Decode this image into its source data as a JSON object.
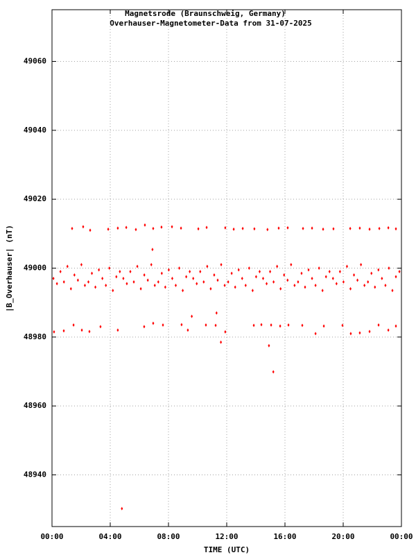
{
  "chart_data": {
    "type": "scatter",
    "title": "Magnetsrode (Braunschweig, Germany)",
    "subtitle": "Overhauser-Magnetometer-Data from 31-07-2025",
    "x_label": "TIME (UTC)",
    "y_label": "|B_Overhauser| (nT)",
    "color": "#ff0000",
    "grid": true,
    "xlim": [
      0,
      24
    ],
    "xticks": [
      {
        "value": 0,
        "label": "00:00"
      },
      {
        "value": 4,
        "label": "04:00"
      },
      {
        "value": 8,
        "label": "08:00"
      },
      {
        "value": 12,
        "label": "12:00"
      },
      {
        "value": 16,
        "label": "16:00"
      },
      {
        "value": 20,
        "label": "20:00"
      },
      {
        "value": 24,
        "label": "00:00"
      }
    ],
    "ylim": [
      48925,
      49075
    ],
    "yticks": [
      48940,
      48960,
      48980,
      49000,
      49020,
      49040,
      49060
    ],
    "x": [
      0.1,
      0.34,
      0.58,
      0.82,
      1.06,
      1.3,
      1.54,
      1.78,
      2.02,
      2.26,
      2.5,
      2.74,
      2.98,
      3.22,
      3.46,
      3.7,
      3.94,
      4.18,
      4.42,
      4.66,
      4.9,
      5.14,
      5.38,
      5.62,
      5.86,
      6.1,
      6.34,
      6.58,
      6.82,
      7.06,
      7.3,
      7.54,
      7.78,
      8.02,
      8.26,
      8.5,
      8.74,
      8.98,
      9.22,
      9.46,
      9.7,
      9.94,
      10.18,
      10.42,
      10.66,
      10.9,
      11.14,
      11.38,
      11.62,
      11.86,
      12.1,
      12.34,
      12.58,
      12.82,
      13.06,
      13.3,
      13.54,
      13.78,
      14.02,
      14.26,
      14.5,
      14.74,
      14.98,
      15.22,
      15.46,
      15.7,
      15.94,
      16.18,
      16.42,
      16.66,
      16.9,
      17.14,
      17.38,
      17.62,
      17.86,
      18.1,
      18.34,
      18.58,
      18.82,
      19.06,
      19.3,
      19.54,
      19.78,
      20.02,
      20.26,
      20.5,
      20.74,
      20.98,
      21.22,
      21.46,
      21.7,
      21.94,
      22.18,
      22.42,
      22.66,
      22.9,
      23.14,
      23.38,
      23.62,
      23.86,
      1.38,
      2.14,
      2.62,
      3.86,
      4.52,
      5.1,
      5.76,
      6.38,
      6.95,
      7.52,
      8.24,
      8.86,
      10.05,
      10.62,
      11.9,
      12.48,
      13.1,
      13.9,
      14.8,
      15.57,
      16.19,
      17.24,
      17.86,
      18.62,
      19.33,
      20.48,
      21.14,
      21.81,
      22.48,
      23.1,
      23.62,
      0.14,
      0.81,
      1.48,
      2.05,
      2.57,
      3.33,
      4.52,
      6.33,
      6.95,
      7.62,
      8.9,
      9.33,
      10.57,
      11.24,
      11.9,
      13.86,
      14.38,
      15.05,
      15.67,
      16.24,
      17.19,
      18.1,
      18.67,
      19.95,
      20.52,
      21.14,
      21.81,
      22.43,
      23.1,
      23.62,
      4.8,
      15.2,
      14.9,
      11.6,
      6.9,
      11.3,
      9.6
    ],
    "values": [
      48997,
      48995.5,
      48999,
      48996,
      49000.5,
      48994,
      48998,
      48996.5,
      49001,
      48995,
      48996,
      48998.5,
      48994.5,
      48999.5,
      48997,
      48995,
      49000,
      48993.5,
      48997.5,
      48999,
      48997,
      48995.5,
      48999,
      48996,
      49000.5,
      48994,
      48998,
      48996.5,
      49001,
      48995,
      48996,
      48998.5,
      48994.5,
      48999.5,
      48997,
      48995,
      49000,
      48993.5,
      48997.5,
      48999,
      48997,
      48995.5,
      48999,
      48996,
      49000.5,
      48994,
      48998,
      48996.5,
      49001,
      48995,
      48996,
      48998.5,
      48994.5,
      48999.5,
      48997,
      48995,
      49000,
      48993.5,
      48997.5,
      48999,
      48997,
      48995.5,
      48999,
      48996,
      49000.5,
      48994,
      48998,
      48996.5,
      49001,
      48995,
      48996,
      48998.5,
      48994.5,
      48999.5,
      48997,
      48995,
      49000,
      48993.5,
      48997.5,
      48999,
      48997,
      48995.5,
      48999,
      48996,
      49000.5,
      48994,
      48998,
      48996.5,
      49001,
      48995,
      48996,
      48998.5,
      48994.5,
      48999.5,
      48997,
      48995,
      49000,
      48993.5,
      48997.5,
      48999,
      49011.5,
      49012,
      49011,
      49011.3,
      49011.6,
      49011.8,
      49011.2,
      49012.5,
      49011.5,
      49011.9,
      49012,
      49011.6,
      49011.4,
      49011.8,
      49011.7,
      49011.3,
      49011.5,
      49011.4,
      49011.2,
      49011.6,
      49011.7,
      49011.5,
      49011.6,
      49011.3,
      49011.4,
      49011.5,
      49011.6,
      49011.3,
      49011.5,
      49011.7,
      49011.4,
      48981.5,
      48981.8,
      48983.5,
      48982,
      48981.6,
      48983,
      48982,
      48983,
      48984,
      48983.5,
      48983.6,
      48982,
      48983.5,
      48983.4,
      48981.5,
      48983.4,
      48983.6,
      48983.5,
      48983.2,
      48983.5,
      48983.4,
      48981,
      48983.2,
      48983.4,
      48981,
      48981.2,
      48981.6,
      48983.5,
      48982,
      48983.2,
      48930.2,
      48969.9,
      48977.5,
      48978.5,
      49005.4,
      48987,
      48986
    ]
  }
}
